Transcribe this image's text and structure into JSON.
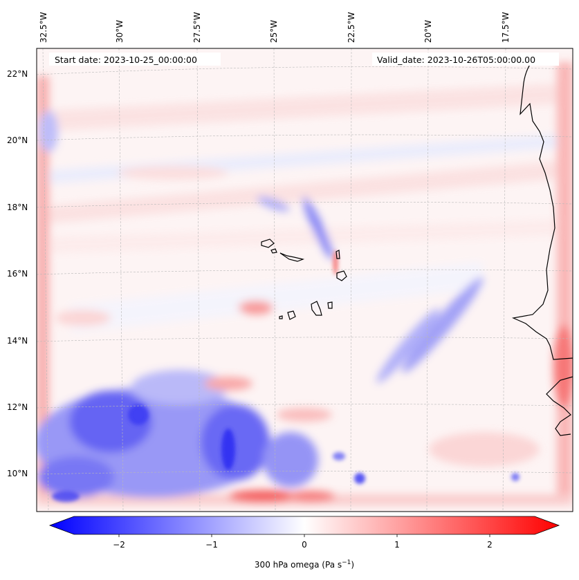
{
  "header": {
    "start_date": "Start date: 2023-10-25_00:00:00",
    "valid_date": "Valid_date: 2023-10-26T05:00:00.00"
  },
  "longitude_labels": [
    "32.5°W",
    "30°W",
    "27.5°W",
    "25°W",
    "22.5°W",
    "20°W",
    "17.5°W"
  ],
  "latitude_labels": [
    "22°N",
    "20°N",
    "18°N",
    "16°N",
    "14°N",
    "12°N",
    "10°N"
  ],
  "colorbar": {
    "ticks": [
      "−2",
      "−1",
      "0",
      "1",
      "2"
    ],
    "label": "300 hPa omega (Pa s",
    "label_sup": "−1",
    "label_close": ")",
    "min": -2.6,
    "max": 2.6,
    "colors": {
      "negative": "#0000ff",
      "zero": "#ffffff",
      "positive": "#ff0000"
    }
  },
  "map": {
    "projection_grid": "dashed-gray",
    "coastline_color": "#000000"
  }
}
